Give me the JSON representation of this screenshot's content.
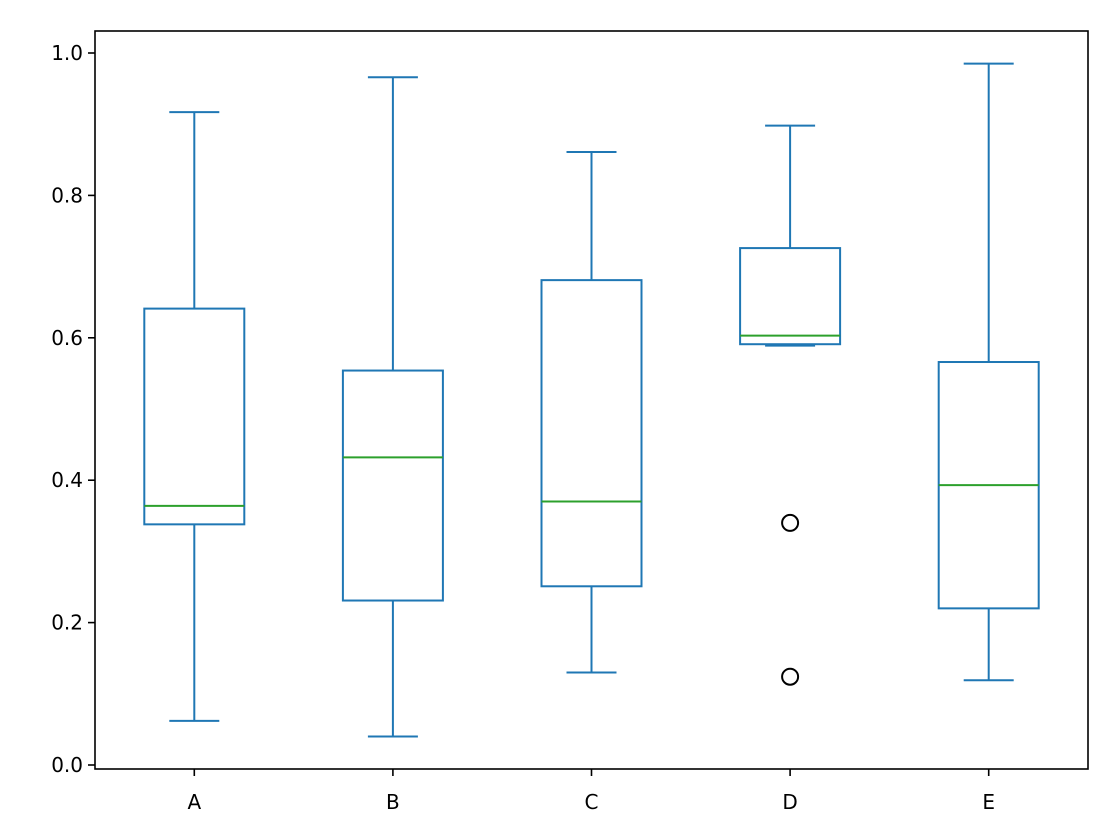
{
  "chart_data": {
    "type": "box",
    "title": "",
    "xlabel": "",
    "ylabel": "",
    "categories": [
      "A",
      "B",
      "C",
      "D",
      "E"
    ],
    "ylim": [
      -0.005,
      1.03
    ],
    "yticks": [
      0.0,
      0.2,
      0.4,
      0.6,
      0.8,
      1.0
    ],
    "ytick_labels": [
      "0.0",
      "0.2",
      "0.4",
      "0.6",
      "0.8",
      "1.0"
    ],
    "grid": false,
    "legend": "none",
    "box_color": "#1f77b4",
    "median_color": "#2ca02c",
    "flier_color": "#000000",
    "boxes": [
      {
        "name": "A",
        "whislo": 0.062,
        "q1": 0.338,
        "median": 0.364,
        "q3": 0.641,
        "whishi": 0.917,
        "fliers": []
      },
      {
        "name": "B",
        "whislo": 0.04,
        "q1": 0.231,
        "median": 0.432,
        "q3": 0.554,
        "whishi": 0.966,
        "fliers": []
      },
      {
        "name": "C",
        "whislo": 0.13,
        "q1": 0.251,
        "median": 0.37,
        "q3": 0.681,
        "whishi": 0.861,
        "fliers": []
      },
      {
        "name": "D",
        "whislo": 0.589,
        "q1": 0.591,
        "median": 0.603,
        "q3": 0.726,
        "whishi": 0.898,
        "fliers": [
          0.34,
          0.124
        ]
      },
      {
        "name": "E",
        "whislo": 0.119,
        "q1": 0.22,
        "median": 0.393,
        "q3": 0.566,
        "whishi": 0.985,
        "fliers": []
      }
    ]
  }
}
